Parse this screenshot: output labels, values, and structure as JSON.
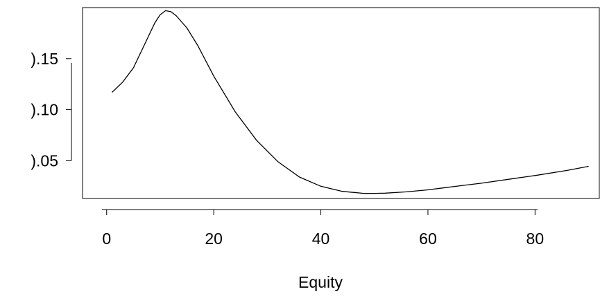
{
  "chart_data": {
    "type": "line",
    "title": "",
    "xlabel": "Equity",
    "ylabel": "",
    "xlim": [
      -4.5,
      92
    ],
    "ylim": [
      0.013,
      0.2
    ],
    "x_ticks": [
      0,
      20,
      40,
      60,
      80
    ],
    "x_tick_labels": [
      "0",
      "20",
      "40",
      "60",
      "80"
    ],
    "y_ticks": [
      0.05,
      0.1,
      0.15
    ],
    "y_tick_labels": [
      ").05",
      ").10",
      ").15"
    ],
    "grid": false,
    "legend": "none",
    "line_color": "#000000",
    "series": [
      {
        "x": [
          1,
          3,
          5,
          7,
          9,
          10,
          11,
          12,
          13,
          15,
          17,
          20,
          24,
          28,
          32,
          36,
          40,
          44,
          48,
          50,
          52,
          56,
          60,
          66,
          70,
          76,
          80,
          86,
          90
        ],
        "y": [
          0.117,
          0.127,
          0.141,
          0.163,
          0.185,
          0.193,
          0.197,
          0.196,
          0.192,
          0.18,
          0.163,
          0.133,
          0.098,
          0.07,
          0.049,
          0.034,
          0.025,
          0.02,
          0.018,
          0.018,
          0.0182,
          0.0195,
          0.0215,
          0.0255,
          0.028,
          0.0325,
          0.0355,
          0.0405,
          0.0445
        ]
      }
    ]
  }
}
